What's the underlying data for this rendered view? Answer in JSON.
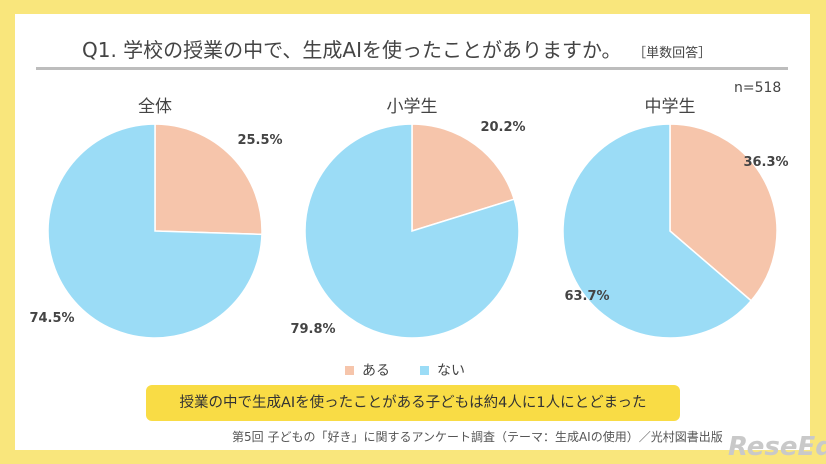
{
  "header": {
    "title": "Q1. 学校の授業の中で、生成AIを使ったことがありますか。",
    "tag": "［単数回答］",
    "n": "n=518"
  },
  "chart_data": [
    {
      "type": "pie",
      "title": "全体",
      "categories": [
        "ある",
        "ない"
      ],
      "values": [
        25.5,
        74.5
      ],
      "labels": [
        "25.5%",
        "74.5%"
      ]
    },
    {
      "type": "pie",
      "title": "小学生",
      "categories": [
        "ある",
        "ない"
      ],
      "values": [
        20.2,
        79.8
      ],
      "labels": [
        "20.2%",
        "79.8%"
      ]
    },
    {
      "type": "pie",
      "title": "中学生",
      "categories": [
        "ある",
        "ない"
      ],
      "values": [
        36.3,
        63.7
      ],
      "labels": [
        "36.3%",
        "63.7%"
      ]
    }
  ],
  "legend": [
    {
      "label": "ある",
      "color": "#f6c5ab"
    },
    {
      "label": "ない",
      "color": "#9bdcf6"
    }
  ],
  "callout": "授業の中で生成AIを使ったことがある子どもは約4人に1人にとどまった",
  "footer": "第5回 子どもの「好き」に関するアンケート調査（テーマ：生成AIの使用）／光村図書出版",
  "logo": "ReseEd"
}
